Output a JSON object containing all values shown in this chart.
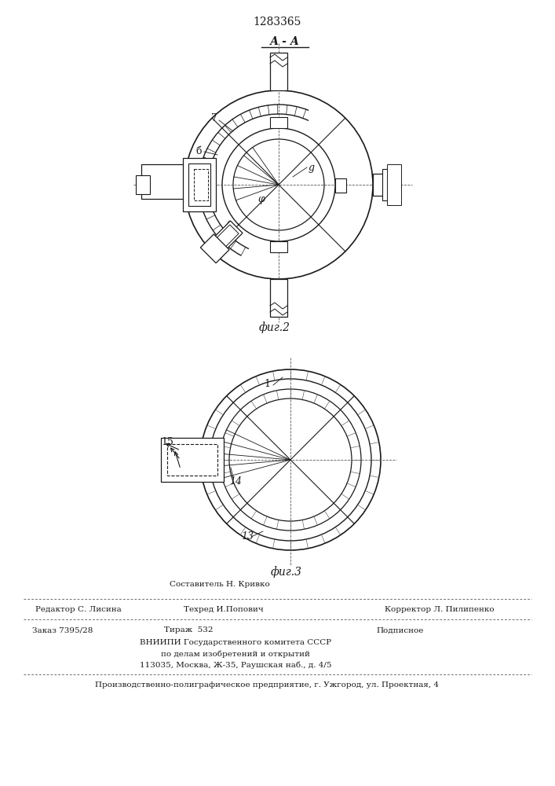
{
  "title_number": "1283365",
  "fig2_label": "А - А",
  "fig2_caption": "фиг.2",
  "fig3_caption": "фиг.3",
  "label_7": "7",
  "label_6": "б",
  "label_9": "g",
  "label_phi": "φ",
  "label_1": "1",
  "label_13": "13",
  "label_14": "14",
  "label_15": "15",
  "footer_line1": "Составитель Н. Кривко",
  "footer_line2_left": "Редактор С. Лисина",
  "footer_line2_mid": "Техред И.Попович",
  "footer_line2_right": "Корректор Л. Пилипенко",
  "footer_line3_left": "Заказ 7395/28",
  "footer_line3_mid": "Тираж  532",
  "footer_line3_right": "Подписное",
  "footer_line4": "ВНИИПИ Государственного комитета СССР",
  "footer_line5": "по делам изобретений и открытий",
  "footer_line6": "113035, Москва, Ж-35, Раушская наб., д. 4/5",
  "footer_line7": "Производственно-полиграфическое предприятие, г. Ужгород, ул. Проектная, 4",
  "line_color": "#1a1a1a"
}
